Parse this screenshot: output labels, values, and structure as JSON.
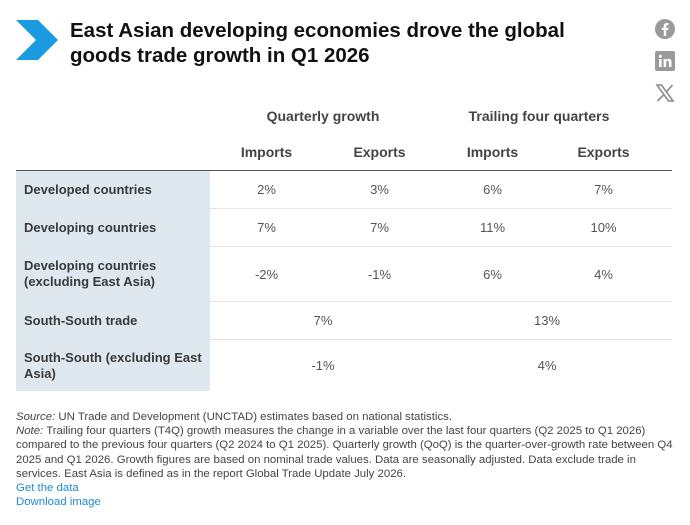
{
  "title": "East Asian developing economies drove the global goods trade growth in Q1 2026",
  "accent_color": "#1a9be0",
  "share_icons": [
    "facebook-icon",
    "linkedin-icon",
    "x-icon"
  ],
  "table": {
    "group_headers": [
      "Quarterly growth",
      "Trailing four quarters"
    ],
    "column_headers": [
      "Imports",
      "Exports",
      "Imports",
      "Exports"
    ],
    "rows": [
      {
        "label": "Developed countries",
        "values": [
          "2%",
          "3%",
          "6%",
          "7%"
        ]
      },
      {
        "label": "Developing countries",
        "values": [
          "7%",
          "7%",
          "11%",
          "10%"
        ]
      },
      {
        "label": "Developing countries (excluding East Asia)",
        "values": [
          "-2%",
          "-1%",
          "6%",
          "4%"
        ]
      },
      {
        "label": "South-South trade",
        "values": [
          "7%",
          "13%"
        ]
      },
      {
        "label": "South-South (excluding East Asia)",
        "values": [
          "-1%",
          "4%"
        ]
      }
    ]
  },
  "notes": {
    "source_label": "Source:",
    "source_text": " UN Trade and Development (UNCTAD) estimates based on national statistics.",
    "note_label": "Note:",
    "note_text": " Trailing four quarters (T4Q) growth measures the change in a variable over the last four quarters (Q2 2025 to Q1 2026) compared to the previous four quarters (Q2 2024 to Q1 2025). Quarterly growth (QoQ) is the quarter-over-growth rate between Q4 2025 and Q1 2026. Growth figures are based on nominal trade values. Data are seasonally adjusted. Data exclude trade in services. East Asia is defined as in the report Global Trade Update July 2026.",
    "get_data": "Get the data",
    "download_image": "Download image"
  }
}
